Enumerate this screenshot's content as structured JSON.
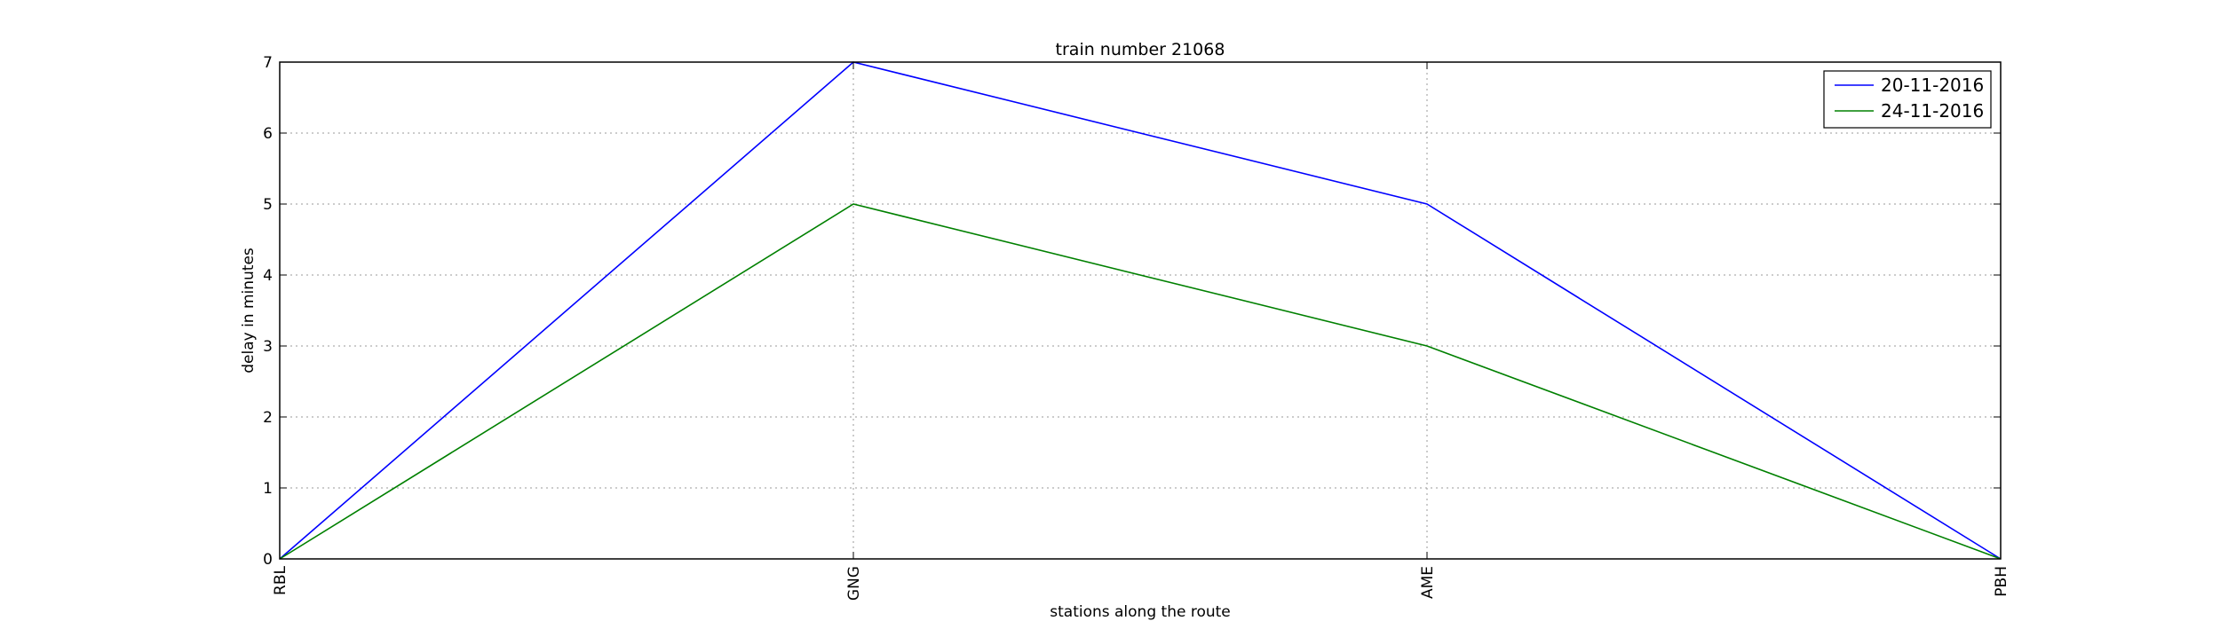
{
  "chart_data": {
    "type": "line",
    "title": "train number 21068",
    "xlabel": "stations along the route",
    "ylabel": "delay in minutes",
    "categories": [
      "RBL",
      "GNG",
      "AME",
      "PBH"
    ],
    "ylim": [
      0,
      7
    ],
    "yticks": [
      0,
      1,
      2,
      3,
      4,
      5,
      6,
      7
    ],
    "grid": true,
    "legend": "top-right",
    "series": [
      {
        "name": "20-11-2016",
        "color": "#0000ff",
        "values": [
          0,
          7,
          5,
          0
        ]
      },
      {
        "name": "24-11-2016",
        "color": "#008000",
        "values": [
          0,
          5,
          3,
          0
        ]
      }
    ]
  }
}
